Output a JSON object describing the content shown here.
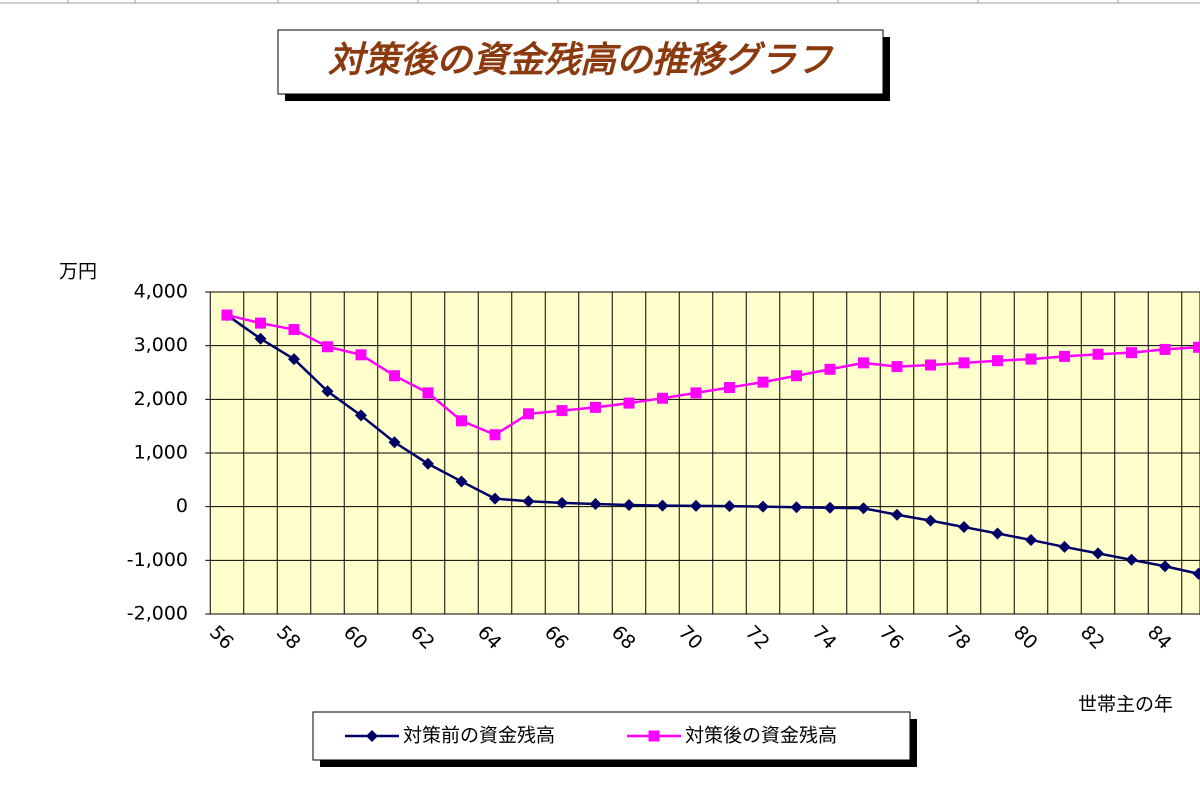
{
  "chart_data": {
    "type": "line",
    "title": "対策後の資金残高の推移グラフ",
    "y_label": "万円",
    "x_label": "世帯主の年",
    "categories": [
      "56",
      null,
      "58",
      null,
      "60",
      null,
      "62",
      null,
      "64",
      null,
      "66",
      null,
      "68",
      null,
      "70",
      null,
      "72",
      null,
      "74",
      null,
      "76",
      null,
      "78",
      null,
      "80",
      null,
      "82",
      null,
      "84",
      null
    ],
    "series": [
      {
        "name": "対策前の資金残高",
        "color": "#000066",
        "marker": "diamond",
        "values": [
          3570,
          3130,
          2750,
          2150,
          1700,
          1200,
          800,
          470,
          150,
          100,
          70,
          50,
          30,
          20,
          15,
          10,
          0,
          -10,
          -20,
          -30,
          -150,
          -260,
          -380,
          -500,
          -620,
          -750,
          -870,
          -990,
          -1110,
          -1250
        ]
      },
      {
        "name": "対策後の資金残高",
        "color": "#ff00ff",
        "marker": "square",
        "values": [
          3570,
          3420,
          3300,
          2980,
          2830,
          2440,
          2120,
          1600,
          1340,
          1730,
          1790,
          1850,
          1930,
          2020,
          2120,
          2220,
          2320,
          2440,
          2560,
          2680,
          2610,
          2640,
          2680,
          2720,
          2750,
          2800,
          2840,
          2870,
          2930,
          2970
        ]
      }
    ],
    "ylim": [
      -2000,
      4000
    ],
    "yticks": [
      {
        "value": -2000,
        "label": "-2,000"
      },
      {
        "value": -1000,
        "label": "-1,000"
      },
      0,
      {
        "value": 1000,
        "label": "1,000"
      },
      {
        "value": 2000,
        "label": "2,000"
      },
      {
        "value": 3000,
        "label": "3,000"
      },
      {
        "value": 4000,
        "label": "4,000"
      }
    ],
    "grid": true,
    "plot_background": "#ffffcc"
  }
}
